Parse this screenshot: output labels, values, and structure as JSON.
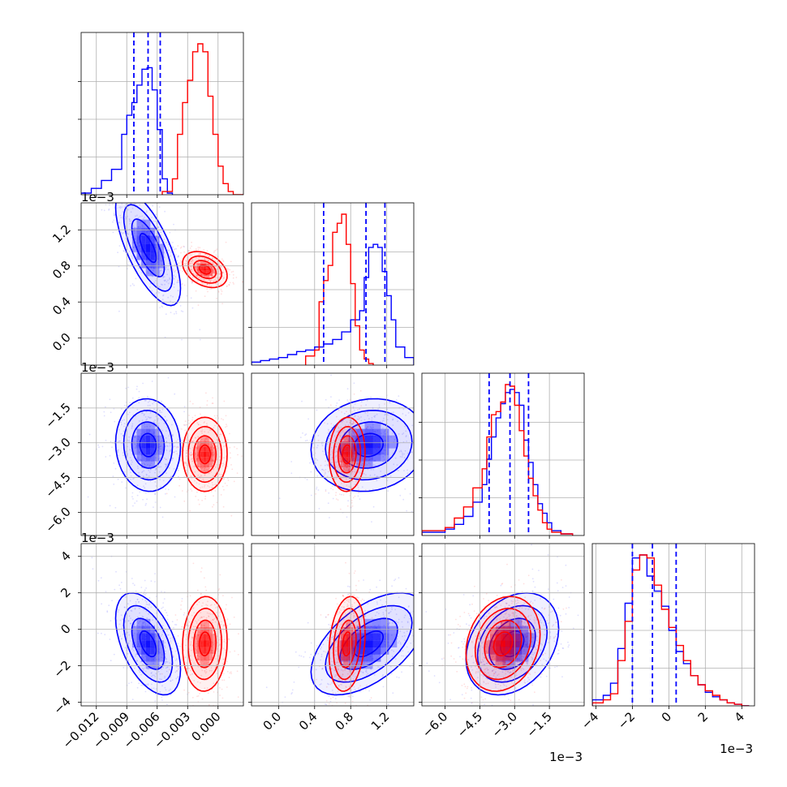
{
  "chart_data": {
    "type": "corner",
    "series": [
      {
        "name": "",
        "color": "#0000ff"
      },
      {
        "name": "",
        "color": "#ff0000"
      }
    ],
    "grid": true,
    "quantile_lines": {
      "color": "#0000ff",
      "style": "dashed",
      "series": "blue"
    },
    "parameters": [
      {
        "id": "p1",
        "range": [
          -0.0135,
          0.0025
        ],
        "ticks": [
          "-0.012",
          "-0.009",
          "-0.006",
          "-0.003",
          "0.000"
        ],
        "tick_values": [
          -0.012,
          -0.009,
          -0.006,
          -0.003,
          0.0
        ],
        "offset_text": ""
      },
      {
        "id": "p2",
        "range": [
          -0.3,
          1.5
        ],
        "ticks": [
          "0.0",
          "0.4",
          "0.8",
          "1.2"
        ],
        "tick_values": [
          0.0,
          0.4,
          0.8,
          1.2
        ],
        "offset_text": "1e−3"
      },
      {
        "id": "p3",
        "range": [
          -7.0,
          0.0
        ],
        "ticks": [
          "-6.0",
          "-4.5",
          "-3.0",
          "-1.5"
        ],
        "tick_values": [
          -6.0,
          -4.5,
          -3.0,
          -1.5
        ],
        "offset_text": "1e−3"
      },
      {
        "id": "p4",
        "range": [
          -4.2,
          4.7
        ],
        "ticks": [
          "-4",
          "-2",
          "0",
          "2",
          "4"
        ],
        "tick_values": [
          -4,
          -2,
          0,
          2,
          4
        ],
        "offset_text": "1e−3"
      }
    ],
    "marginals": [
      {
        "param": 0,
        "quantiles": [
          -0.0083,
          -0.0069,
          -0.0057
        ],
        "blue": {
          "edges": [
            -0.0135,
            -0.0125,
            -0.0115,
            -0.0105,
            -0.0095,
            -0.009,
            -0.0085,
            -0.008,
            -0.0075,
            -0.007,
            -0.0065,
            -0.006,
            -0.0055,
            -0.005,
            -0.0045
          ],
          "counts": [
            0.01,
            0.04,
            0.09,
            0.16,
            0.38,
            0.5,
            0.58,
            0.69,
            0.79,
            0.8,
            0.66,
            0.41,
            0.1,
            0.01
          ]
        },
        "red": {
          "edges": [
            -0.0055,
            -0.0045,
            -0.004,
            -0.0035,
            -0.003,
            -0.0025,
            -0.002,
            -0.0015,
            -0.001,
            -0.0005,
            0.0,
            0.0005,
            0.001,
            0.0015,
            0.0025
          ],
          "counts": [
            0.02,
            0.1,
            0.38,
            0.58,
            0.72,
            0.9,
            0.95,
            0.9,
            0.62,
            0.38,
            0.18,
            0.07,
            0.02,
            0.0
          ]
        }
      },
      {
        "param": 1,
        "quantiles": [
          0.5,
          0.97,
          1.18
        ],
        "blue": {
          "edges": [
            -0.3,
            -0.2,
            -0.1,
            0.0,
            0.1,
            0.2,
            0.3,
            0.4,
            0.5,
            0.6,
            0.7,
            0.8,
            0.9,
            0.95,
            1.0,
            1.05,
            1.1,
            1.15,
            1.2,
            1.25,
            1.3,
            1.4,
            1.5
          ],
          "counts": [
            0.02,
            0.03,
            0.04,
            0.05,
            0.07,
            0.09,
            0.1,
            0.12,
            0.14,
            0.17,
            0.22,
            0.3,
            0.36,
            0.58,
            0.78,
            0.8,
            0.78,
            0.62,
            0.46,
            0.3,
            0.12,
            0.05
          ]
        },
        "red": {
          "edges": [
            0.3,
            0.4,
            0.45,
            0.5,
            0.55,
            0.6,
            0.65,
            0.7,
            0.75,
            0.8,
            0.85,
            0.9,
            0.95,
            1.0,
            1.05
          ],
          "counts": [
            0.06,
            0.1,
            0.42,
            0.56,
            0.66,
            0.88,
            0.94,
            1.0,
            0.8,
            0.54,
            0.26,
            0.1,
            0.04,
            0.01
          ]
        }
      },
      {
        "param": 2,
        "quantiles": [
          -4.1,
          -3.2,
          -2.4
        ],
        "blue": {
          "edges": [
            -7.0,
            -6.0,
            -5.6,
            -5.2,
            -4.8,
            -4.4,
            -4.2,
            -4.0,
            -3.8,
            -3.6,
            -3.4,
            -3.2,
            -3.0,
            -2.8,
            -2.6,
            -2.4,
            -2.2,
            -2.0,
            -1.8,
            -1.6,
            -1.4,
            -1.0,
            -0.5
          ],
          "counts": [
            0.02,
            0.04,
            0.07,
            0.12,
            0.21,
            0.32,
            0.48,
            0.62,
            0.74,
            0.83,
            0.9,
            0.92,
            0.9,
            0.82,
            0.6,
            0.46,
            0.32,
            0.2,
            0.14,
            0.08,
            0.03,
            0.01
          ]
        },
        "red": {
          "edges": [
            -7.0,
            -6.0,
            -5.6,
            -5.2,
            -4.8,
            -4.4,
            -4.2,
            -4.0,
            -3.8,
            -3.6,
            -3.4,
            -3.2,
            -3.0,
            -2.8,
            -2.6,
            -2.4,
            -2.2,
            -2.0,
            -1.8,
            -1.6,
            -1.4,
            -1.0,
            -0.5
          ],
          "counts": [
            0.03,
            0.05,
            0.11,
            0.18,
            0.3,
            0.42,
            0.62,
            0.76,
            0.78,
            0.84,
            0.95,
            0.94,
            0.82,
            0.66,
            0.5,
            0.36,
            0.25,
            0.16,
            0.08,
            0.04,
            0.02,
            0.01
          ]
        }
      },
      {
        "param": 3,
        "quantiles": [
          -2.0,
          -0.9,
          0.4
        ],
        "blue": {
          "edges": [
            -4.2,
            -3.6,
            -3.2,
            -2.8,
            -2.4,
            -2.0,
            -1.6,
            -1.2,
            -0.8,
            -0.4,
            0.0,
            0.4,
            0.8,
            1.2,
            1.6,
            2.0,
            2.4,
            2.8,
            3.2,
            3.6,
            4.0,
            4.4
          ],
          "counts": [
            0.04,
            0.07,
            0.15,
            0.38,
            0.68,
            0.98,
            1.0,
            0.86,
            0.76,
            0.66,
            0.5,
            0.36,
            0.28,
            0.2,
            0.14,
            0.09,
            0.06,
            0.04,
            0.02,
            0.01,
            0.0
          ]
        },
        "red": {
          "edges": [
            -4.2,
            -3.6,
            -3.2,
            -2.8,
            -2.4,
            -2.0,
            -1.6,
            -1.2,
            -0.8,
            -0.4,
            0.0,
            0.4,
            0.8,
            1.2,
            1.6,
            2.0,
            2.4,
            2.8,
            3.2,
            3.6,
            4.0,
            4.4
          ],
          "counts": [
            0.02,
            0.04,
            0.08,
            0.3,
            0.56,
            0.9,
            1.0,
            0.98,
            0.8,
            0.64,
            0.52,
            0.4,
            0.3,
            0.2,
            0.14,
            0.1,
            0.07,
            0.04,
            0.02,
            0.01,
            0.0
          ]
        }
      }
    ],
    "clusters": {
      "blue": {
        "center": [
          -0.0069,
          1.0,
          -3.1,
          -0.8
        ],
        "sigma": [
          0.0016,
          0.32,
          1.0,
          1.4
        ],
        "corr": {
          "0-1": -0.7,
          "0-2": -0.05,
          "0-3": -0.5,
          "1-2": 0.1,
          "1-3": 0.55,
          "2-3": 0.3
        }
      },
      "red": {
        "center": [
          -0.0013,
          0.76,
          -3.5,
          -0.8
        ],
        "sigma": [
          0.0011,
          0.1,
          0.8,
          1.3
        ],
        "corr": {
          "0-1": -0.35,
          "0-2": 0.0,
          "0-3": 0.05,
          "1-2": 0.05,
          "1-3": 0.2,
          "2-3": 0.2
        }
      }
    }
  }
}
